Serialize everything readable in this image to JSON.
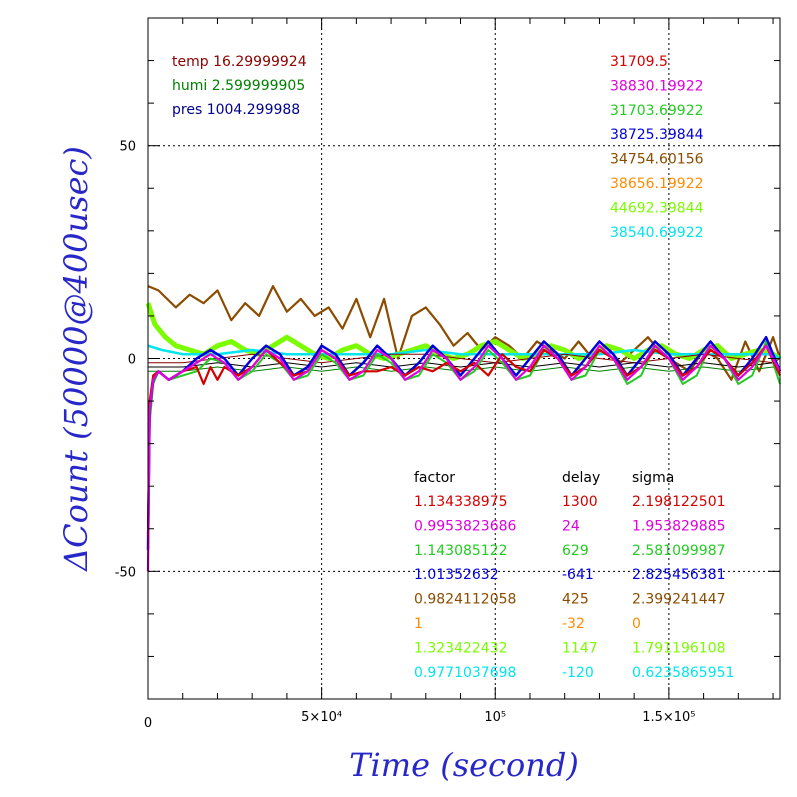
{
  "chart_data": {
    "type": "line",
    "xlabel": "Time (second)",
    "ylabel": "ΔCount (50000@400usec)",
    "xlim": [
      0,
      182000
    ],
    "ylim": [
      -80,
      80
    ],
    "grid": true,
    "x_ticks": [
      {
        "value": 0,
        "label": "0"
      },
      {
        "value": 50000,
        "label": "5×10⁴"
      },
      {
        "value": 100000,
        "label": "10⁵"
      },
      {
        "value": 150000,
        "label": "1.5×10⁵"
      }
    ],
    "y_ticks": [
      {
        "value": 50,
        "label": "50"
      },
      {
        "value": 0,
        "label": "0"
      },
      {
        "value": -50,
        "label": "-50"
      }
    ],
    "env_labels": [
      {
        "text": "temp 16.29999924",
        "color": "#8b0000"
      },
      {
        "text": "humi 2.599999905",
        "color": "#008000"
      },
      {
        "text": "pres 1004.299988",
        "color": "#00008b"
      }
    ],
    "means": [
      {
        "text": "31709.5",
        "color": "#d40000"
      },
      {
        "text": "38830.19922",
        "color": "#e000e0"
      },
      {
        "text": "31703.69922",
        "color": "#22cc22"
      },
      {
        "text": "38725.39844",
        "color": "#0000dd"
      },
      {
        "text": "34754.60156",
        "color": "#8b4c00"
      },
      {
        "text": "38656.19922",
        "color": "#ff8c00"
      },
      {
        "text": "44692.39844",
        "color": "#7cfc00"
      },
      {
        "text": "38540.69922",
        "color": "#00e5ee"
      }
    ],
    "table_headers": [
      "factor",
      "delay",
      "sigma"
    ],
    "table_rows": [
      {
        "factor": "1.134338975",
        "delay": "1300",
        "sigma": "2.198122501",
        "color": "#d40000"
      },
      {
        "factor": "0.9953823686",
        "delay": "24",
        "sigma": "1.953829885",
        "color": "#e000e0"
      },
      {
        "factor": "1.143085122",
        "delay": "629",
        "sigma": "2.581099987",
        "color": "#22cc22"
      },
      {
        "factor": "1.01352632",
        "delay": "-641",
        "sigma": "2.825456381",
        "color": "#0000dd"
      },
      {
        "factor": "0.9824112058",
        "delay": "425",
        "sigma": "2.399241447",
        "color": "#8b4c00"
      },
      {
        "factor": "1",
        "delay": "-32",
        "sigma": "0",
        "color": "#ff8c00"
      },
      {
        "factor": "1.323422432",
        "delay": "1147",
        "sigma": "1.791196108",
        "color": "#7cfc00"
      },
      {
        "factor": "0.9771037698",
        "delay": "-120",
        "sigma": "0.6235865951",
        "color": "#00e5ee"
      }
    ],
    "series": [
      {
        "color": "#8b4c00",
        "width": 2.2,
        "x": [
          0,
          3000,
          8000,
          12000,
          16000,
          20000,
          24000,
          28000,
          32000,
          36000,
          40000,
          44000,
          48000,
          52000,
          56000,
          60000,
          64000,
          68000,
          72000,
          76000,
          80000,
          84000,
          88000,
          92000,
          96000,
          100000,
          104000,
          108000,
          112000,
          116000,
          120000,
          124000,
          128000,
          132000,
          136000,
          140000,
          144000,
          148000,
          152000,
          156000,
          160000,
          164000,
          168000,
          172000,
          176000,
          180000,
          182000
        ],
        "y": [
          17,
          16,
          12,
          15,
          13,
          16,
          9,
          13,
          10,
          17,
          11,
          14,
          10,
          12,
          7,
          14,
          5,
          14,
          0,
          10,
          12,
          8,
          3,
          6,
          2,
          5,
          3,
          0,
          4,
          2,
          0,
          4,
          0,
          3,
          -1,
          2,
          5,
          1,
          -1,
          -3,
          2,
          0,
          -5,
          4,
          -3,
          5,
          0
        ]
      },
      {
        "color": "#7cfc00",
        "width": 5,
        "x": [
          0,
          2000,
          5000,
          8000,
          12000,
          16000,
          20000,
          24000,
          28000,
          32000,
          36000,
          40000,
          44000,
          48000,
          52000,
          56000,
          60000,
          64000,
          68000,
          72000,
          76000,
          80000,
          84000,
          88000,
          92000,
          96000,
          100000,
          104000,
          108000,
          112000,
          116000,
          120000,
          124000,
          128000,
          132000,
          136000,
          140000,
          144000,
          148000,
          152000,
          156000,
          160000,
          164000,
          168000,
          172000,
          176000,
          180000,
          182000
        ],
        "y": [
          13,
          8,
          5,
          3,
          2,
          1,
          3,
          4,
          2,
          1,
          3,
          5,
          3,
          1,
          0,
          2,
          3,
          1,
          0,
          1,
          2,
          3,
          1,
          0,
          1,
          3,
          4,
          2,
          0,
          1,
          3,
          2,
          0,
          1,
          3,
          2,
          0,
          2,
          3,
          1,
          0,
          2,
          3,
          0,
          1,
          2,
          1,
          0
        ]
      },
      {
        "color": "#00e5ee",
        "width": 2.5,
        "x": [
          0,
          4000,
          10000,
          20000,
          30000,
          40000,
          50000,
          60000,
          70000,
          80000,
          90000,
          100000,
          110000,
          120000,
          130000,
          140000,
          150000,
          160000,
          170000,
          180000,
          182000
        ],
        "y": [
          3,
          2,
          1,
          1,
          2,
          1,
          1,
          1,
          1,
          2,
          1,
          1,
          1,
          1,
          1,
          2,
          1,
          1,
          1,
          1,
          0
        ]
      },
      {
        "color": "#8b0000",
        "width": 1,
        "x": [
          0,
          10000,
          20000,
          30000,
          40000,
          50000,
          60000,
          70000,
          80000,
          90000,
          100000,
          110000,
          120000,
          130000,
          140000,
          150000,
          160000,
          170000,
          180000,
          182000
        ],
        "y": [
          -1,
          -1,
          0,
          1,
          0,
          -1,
          0,
          1,
          1,
          0,
          -1,
          0,
          1,
          0,
          -1,
          0,
          1,
          0,
          -1,
          0
        ]
      },
      {
        "color": "#000000",
        "width": 1,
        "x": [
          0,
          10000,
          20000,
          30000,
          40000,
          50000,
          60000,
          70000,
          80000,
          90000,
          100000,
          110000,
          120000,
          130000,
          140000,
          150000,
          160000,
          170000,
          180000,
          182000
        ],
        "y": [
          -2,
          -2,
          -1,
          -2,
          -1,
          -2,
          -1,
          -2,
          -1,
          -2,
          -1,
          -2,
          -1,
          -2,
          -1,
          -2,
          -1,
          -2,
          -1,
          -2
        ]
      },
      {
        "color": "#008000",
        "width": 1,
        "x": [
          0,
          10000,
          20000,
          30000,
          40000,
          50000,
          60000,
          70000,
          80000,
          90000,
          100000,
          110000,
          120000,
          130000,
          140000,
          150000,
          160000,
          170000,
          180000,
          182000
        ],
        "y": [
          -3,
          -3,
          -2,
          -3,
          -2,
          -3,
          -2,
          -3,
          -2,
          -3,
          -2,
          -3,
          -2,
          -3,
          -2,
          -3,
          -2,
          -3,
          -2,
          -3
        ]
      },
      {
        "color": "#22cc22",
        "width": 2,
        "x": [
          0,
          500,
          1500,
          3000,
          6000,
          10000,
          14000,
          18000,
          22000,
          26000,
          30000,
          34000,
          38000,
          42000,
          46000,
          50000,
          54000,
          58000,
          62000,
          66000,
          70000,
          74000,
          78000,
          82000,
          86000,
          90000,
          94000,
          98000,
          102000,
          106000,
          110000,
          114000,
          118000,
          122000,
          126000,
          130000,
          134000,
          138000,
          142000,
          146000,
          150000,
          154000,
          158000,
          162000,
          166000,
          170000,
          174000,
          178000,
          182000
        ],
        "y": [
          -40,
          -15,
          -6,
          -3,
          -5,
          -4,
          -3,
          0,
          -1,
          -5,
          -3,
          1,
          -1,
          -5,
          -4,
          1,
          -1,
          -5,
          -4,
          1,
          -1,
          -5,
          -4,
          1,
          -1,
          -5,
          -3,
          2,
          -1,
          -5,
          -4,
          2,
          0,
          -5,
          -4,
          2,
          0,
          -6,
          -4,
          3,
          0,
          -6,
          -4,
          3,
          0,
          -6,
          -4,
          4,
          -6
        ]
      },
      {
        "color": "#0000dd",
        "width": 2.5,
        "x": [
          0,
          500,
          1500,
          3000,
          6000,
          10000,
          14000,
          18000,
          22000,
          26000,
          30000,
          34000,
          38000,
          42000,
          46000,
          50000,
          54000,
          58000,
          62000,
          66000,
          70000,
          74000,
          78000,
          82000,
          86000,
          90000,
          94000,
          98000,
          102000,
          106000,
          110000,
          114000,
          118000,
          122000,
          126000,
          130000,
          134000,
          138000,
          142000,
          146000,
          150000,
          154000,
          158000,
          162000,
          166000,
          170000,
          174000,
          178000,
          182000
        ],
        "y": [
          -45,
          -12,
          -5,
          -3,
          -5,
          -3,
          0,
          2,
          0,
          -4,
          0,
          3,
          1,
          -4,
          -2,
          3,
          1,
          -4,
          -1,
          3,
          0,
          -4,
          -1,
          3,
          0,
          -4,
          0,
          4,
          0,
          -4,
          0,
          4,
          1,
          -4,
          0,
          4,
          1,
          -4,
          0,
          4,
          1,
          -4,
          0,
          4,
          0,
          -4,
          0,
          5,
          -3
        ]
      },
      {
        "color": "#d40000",
        "width": 2.2,
        "x": [
          0,
          500,
          1500,
          3000,
          6000,
          10000,
          14000,
          16000,
          18000,
          20000,
          22000,
          24000,
          26000,
          30000,
          34000,
          38000,
          42000,
          46000,
          50000,
          54000,
          58000,
          62000,
          66000,
          70000,
          74000,
          78000,
          82000,
          86000,
          90000,
          94000,
          98000,
          102000,
          106000,
          110000,
          114000,
          118000,
          122000,
          126000,
          130000,
          134000,
          138000,
          142000,
          146000,
          150000,
          154000,
          158000,
          162000,
          166000,
          170000,
          174000,
          178000,
          182000
        ],
        "y": [
          -42,
          -10,
          -4,
          -3,
          -5,
          -3,
          -2,
          -6,
          -2,
          -5,
          -2,
          -3,
          -4,
          -2,
          2,
          -1,
          -4,
          -3,
          2,
          0,
          -4,
          -3,
          -3,
          -2,
          -4,
          -2,
          -3,
          -1,
          -3,
          -1,
          -4,
          1,
          -2,
          -3,
          2,
          0,
          -4,
          -2,
          2,
          0,
          -4,
          -2,
          2,
          0,
          -4,
          -2,
          2,
          0,
          -4,
          -1,
          3,
          -4
        ]
      },
      {
        "color": "#e000e0",
        "width": 2.2,
        "x": [
          0,
          500,
          1500,
          3000,
          6000,
          10000,
          14000,
          18000,
          22000,
          26000,
          30000,
          34000,
          38000,
          42000,
          46000,
          50000,
          54000,
          58000,
          62000,
          66000,
          70000,
          74000,
          78000,
          82000,
          86000,
          90000,
          94000,
          98000,
          102000,
          106000,
          110000,
          114000,
          118000,
          122000,
          126000,
          130000,
          134000,
          138000,
          142000,
          146000,
          150000,
          154000,
          158000,
          162000,
          166000,
          170000,
          174000,
          178000,
          182000
        ],
        "y": [
          -50,
          -12,
          -5,
          -3,
          -5,
          -3,
          -1,
          1,
          -1,
          -5,
          -2,
          2,
          0,
          -5,
          -3,
          2,
          0,
          -5,
          -3,
          2,
          0,
          -5,
          -3,
          2,
          0,
          -5,
          -2,
          3,
          0,
          -5,
          -2,
          3,
          0,
          -5,
          -2,
          3,
          0,
          -5,
          -2,
          3,
          0,
          -5,
          -2,
          3,
          0,
          -5,
          -2,
          3,
          -3
        ]
      }
    ]
  }
}
